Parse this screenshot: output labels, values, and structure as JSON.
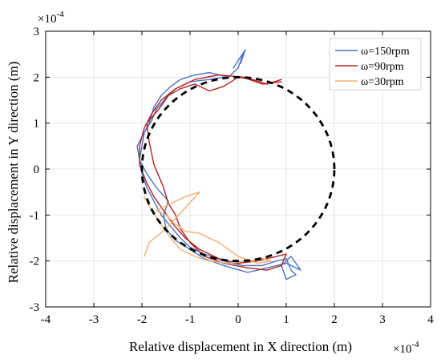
{
  "chart_data": {
    "type": "line",
    "title": "",
    "xlabel": "Relative displacement in X direction (m)",
    "ylabel": "Relative displacement in Y direction (m)",
    "x_exponent_label": "×10",
    "x_exponent_power": "-4",
    "y_exponent_label": "×10",
    "y_exponent_power": "-4",
    "xlim": [
      -4,
      4
    ],
    "ylim": [
      -3,
      3
    ],
    "xticks": [
      -4,
      -3,
      -2,
      -1,
      0,
      1,
      2,
      3,
      4
    ],
    "yticks": [
      -3,
      -2,
      -1,
      0,
      1,
      2,
      3
    ],
    "xtick_labels": [
      "-4",
      "-3",
      "-2",
      "-1",
      "0",
      "1",
      "2",
      "3",
      "4"
    ],
    "ytick_labels": [
      "-3",
      "-2",
      "-1",
      "0",
      "1",
      "2",
      "3"
    ],
    "grid": true,
    "legend_position": "top-right",
    "reference_circle": {
      "center": [
        0,
        0
      ],
      "radius": 2,
      "color": "#000000",
      "style": "dashed"
    },
    "series": [
      {
        "name": "ω=150rpm",
        "color": "#4a72c4",
        "x": [
          -0.3,
          -0.6,
          -1.0,
          -1.3,
          -1.5,
          -1.7,
          -1.8,
          -1.95,
          -2.0,
          -2.05,
          -2.0,
          -1.9,
          -1.75,
          -1.6,
          -1.4,
          -1.2,
          -1.0,
          -0.7,
          -0.3,
          0.1,
          0.5,
          0.8,
          1.0,
          1.1,
          1.2,
          1.0,
          0.9,
          1.1,
          1.3,
          1.0,
          0.6,
          0.2,
          -0.3,
          -0.7,
          -1.0,
          -1.3,
          -1.5,
          -1.55,
          -1.45,
          -1.7,
          -1.9,
          -2.05,
          -2.1,
          -1.95,
          -1.85,
          -1.75,
          -1.6,
          -1.4,
          -1.2,
          -0.9,
          -0.6,
          -0.2,
          0.0,
          0.1,
          0.05,
          0.15,
          -0.1
        ],
        "y": [
          2.0,
          1.95,
          1.9,
          1.75,
          1.55,
          1.3,
          1.05,
          0.8,
          0.5,
          0.2,
          -0.1,
          -0.4,
          -0.7,
          -1.0,
          -1.25,
          -1.5,
          -1.7,
          -1.85,
          -2.0,
          -2.1,
          -2.1,
          -2.0,
          -1.95,
          -2.2,
          -2.3,
          -2.4,
          -2.1,
          -1.9,
          -2.2,
          -2.05,
          -2.15,
          -2.25,
          -2.1,
          -1.95,
          -1.75,
          -1.55,
          -1.3,
          -1.0,
          -0.7,
          -0.4,
          -0.1,
          0.2,
          0.5,
          0.8,
          1.0,
          1.35,
          1.6,
          1.8,
          1.95,
          2.05,
          2.1,
          2.0,
          2.2,
          2.5,
          2.3,
          2.6,
          2.2
        ]
      },
      {
        "name": "ω=90rpm",
        "color": "#b22222",
        "x": [
          0.9,
          0.5,
          0.1,
          -0.4,
          -0.9,
          -1.3,
          -1.6,
          -1.8,
          -1.95,
          -2.05,
          -2.05,
          -1.9,
          -1.75,
          -1.55,
          -1.35,
          -1.1,
          -0.8,
          -0.4,
          0.0,
          0.4,
          0.8,
          1.0,
          0.9,
          0.6,
          0.2,
          -0.3,
          -0.7,
          -1.0,
          -1.2,
          -1.3,
          -1.45,
          -1.55,
          -1.75,
          -1.85,
          -1.9,
          -1.65,
          -1.45,
          -1.2,
          -0.9,
          -0.6,
          -0.3,
          0.0,
          0.3,
          0.6,
          0.9
        ],
        "y": [
          1.9,
          1.85,
          2.0,
          2.05,
          1.95,
          1.75,
          1.5,
          1.2,
          0.9,
          0.5,
          0.1,
          -0.3,
          -0.6,
          -0.9,
          -1.2,
          -1.5,
          -1.75,
          -1.95,
          -2.05,
          -2.0,
          -1.9,
          -1.85,
          -2.1,
          -2.2,
          -2.15,
          -2.05,
          -1.9,
          -1.6,
          -1.3,
          -1.0,
          -0.75,
          -0.4,
          0.1,
          0.6,
          1.0,
          1.3,
          1.6,
          1.75,
          1.85,
          1.7,
          1.8,
          2.0,
          1.95,
          1.85,
          1.95
        ]
      },
      {
        "name": "ω=30rpm",
        "color": "#f0b070",
        "x": [
          -1.95,
          -1.8,
          -1.6,
          -1.4,
          -1.2,
          -0.9,
          -0.6,
          -0.2,
          0.2,
          0.5,
          0.7,
          0.4,
          0.0,
          -0.4,
          -0.8,
          -1.1,
          -1.3,
          -1.5,
          -1.7,
          -1.4,
          -1.1,
          -0.8,
          -1.5,
          -1.85,
          -1.95
        ],
        "y": [
          -0.6,
          -0.9,
          -1.2,
          -1.5,
          -1.75,
          -1.9,
          -2.0,
          -2.05,
          -2.0,
          -1.95,
          -2.0,
          -2.05,
          -1.9,
          -1.6,
          -1.4,
          -1.35,
          -1.2,
          -1.0,
          -0.9,
          -0.75,
          -0.6,
          -0.5,
          -1.3,
          -1.6,
          -1.9
        ]
      }
    ]
  }
}
